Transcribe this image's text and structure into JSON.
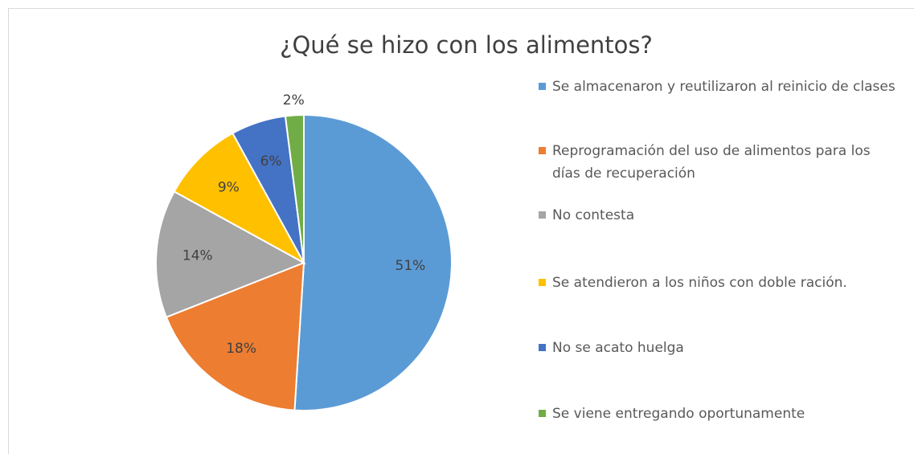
{
  "chart_data": {
    "type": "pie",
    "title": "¿Qué se hizo con los alimentos?",
    "categories": [
      "Se almacenaron y reutilizaron al reinicio de clases",
      "Reprogramación del uso de alimentos para los días de recuperación",
      "No contesta",
      "Se atendieron a los niños con doble ración.",
      "No se acato huelga",
      "Se viene entregando oportunamente"
    ],
    "values": [
      51,
      18,
      14,
      9,
      6,
      2
    ],
    "value_labels": [
      "51%",
      "18%",
      "14%",
      "9%",
      "6%",
      "2%"
    ],
    "colors": [
      "#5b9bd5",
      "#ed7d31",
      "#a5a5a5",
      "#ffc000",
      "#4472c4",
      "#70ad47"
    ],
    "legend": "right"
  }
}
